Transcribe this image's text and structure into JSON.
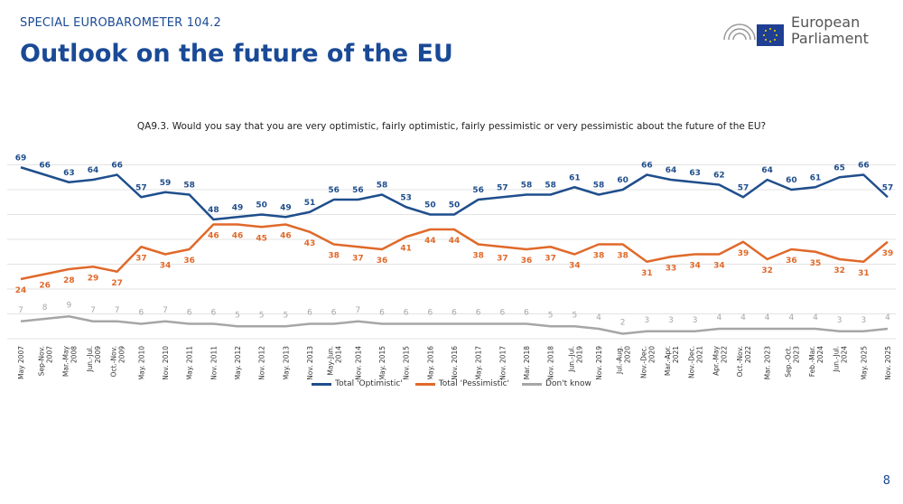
{
  "header": {
    "supertitle": "SPECIAL EUROBAROMETER 104.2",
    "title": "Outlook on the future of the EU",
    "logo_text": [
      "European",
      "Parliament"
    ]
  },
  "page_number": "8",
  "chart_data": {
    "type": "line",
    "title": "QA9.3. Would you say that you are very optimistic, fairly optimistic, fairly pessimistic or very pessimistic about the future of the EU?",
    "xlabel": "",
    "ylabel": "",
    "ylim": [
      0,
      70
    ],
    "grid": true,
    "legend": "bottom",
    "categories": [
      "May 2007",
      "Sep-Nov. 2007",
      "Mar.-May 2008",
      "Jun.-Jul. 2009",
      "Oct.-Nov. 2009",
      "May. 2010",
      "Nov. 2010",
      "May. 2011",
      "Nov. 2011",
      "May. 2012",
      "Nov. 2012",
      "May. 2013",
      "Nov. 2013",
      "May-Jun. 2014",
      "Nov. 2014",
      "May. 2015",
      "Nov. 2015",
      "May. 2016",
      "Nov. 2016",
      "May. 2017",
      "Nov. 2017",
      "Mar. 2018",
      "Nov. 2018",
      "Jun.-Jul. 2019",
      "Nov. 2019",
      "Jul.-Aug. 2020",
      "Nov.-Dec. 2020",
      "Mar.-Apr. 2021",
      "Nov.-Dec. 2021",
      "Apr.-May 2022",
      "Oct.-Nov. 2022",
      "Mar. 2023",
      "Sep.-Oct. 2023",
      "Feb.-Mar. 2024",
      "Jun.-Jul. 2024",
      "May. 2025",
      "Nov. 2025"
    ],
    "series": [
      {
        "name": "Total 'Optimistic'",
        "color": "#1f4e8c",
        "values": [
          69,
          66,
          63,
          64,
          66,
          57,
          59,
          58,
          48,
          49,
          50,
          49,
          51,
          56,
          56,
          58,
          53,
          50,
          50,
          56,
          57,
          58,
          58,
          61,
          58,
          60,
          66,
          64,
          63,
          62,
          57,
          64,
          60,
          61,
          65,
          66,
          57
        ]
      },
      {
        "name": "Total 'Pessimistic'",
        "color": "#e0692a",
        "values": [
          24,
          26,
          28,
          29,
          27,
          37,
          34,
          36,
          46,
          46,
          45,
          46,
          43,
          38,
          37,
          36,
          41,
          44,
          44,
          38,
          37,
          36,
          37,
          34,
          38,
          38,
          31,
          33,
          34,
          34,
          39,
          32,
          36,
          35,
          32,
          31,
          39
        ]
      },
      {
        "name": "Don't know",
        "color": "#a6a6a6",
        "values": [
          7,
          8,
          9,
          7,
          7,
          6,
          7,
          6,
          6,
          5,
          5,
          5,
          6,
          6,
          7,
          6,
          6,
          6,
          6,
          6,
          6,
          6,
          5,
          5,
          4,
          2,
          3,
          3,
          3,
          4,
          4,
          4,
          4,
          4,
          3,
          3,
          4
        ]
      }
    ]
  }
}
